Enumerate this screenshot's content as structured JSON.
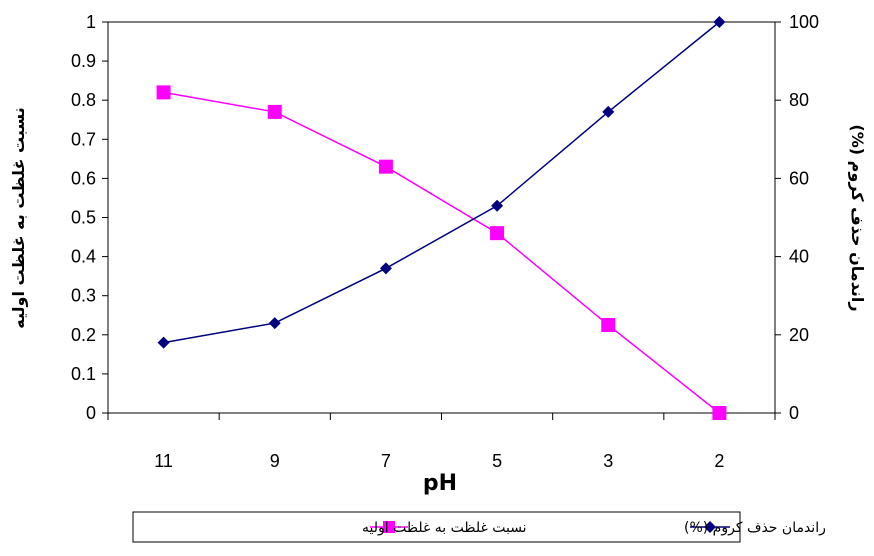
{
  "chart_data": {
    "type": "line",
    "categories": [
      "11",
      "9",
      "7",
      "5",
      "3",
      "2"
    ],
    "xlabel": "pH",
    "ylabel_left": "نسبت غلظت به غلظت اولیه",
    "ylabel_right": "راندمان حذف کروم (%)",
    "ylim_left": [
      0,
      1
    ],
    "ylim_right": [
      0,
      100
    ],
    "yticks_left": [
      "0",
      "0.1",
      "0.2",
      "0.3",
      "0.4",
      "0.5",
      "0.6",
      "0.7",
      "0.8",
      "0.9",
      "1"
    ],
    "yticks_right": [
      "0",
      "20",
      "40",
      "60",
      "80",
      "100"
    ],
    "grid": false,
    "legend_position": "bottom",
    "series": [
      {
        "name": "نسبت غلظت به غلظت اولیه",
        "axis": "left",
        "color": "#ff00ff",
        "marker": "square",
        "values": [
          0.82,
          0.77,
          0.63,
          0.46,
          0.225,
          0.0
        ]
      },
      {
        "name": "راندمان حذف کروم (%)",
        "axis": "right",
        "color": "#000080",
        "marker": "diamond",
        "values": [
          18,
          23,
          37,
          53,
          77,
          100
        ]
      }
    ]
  }
}
